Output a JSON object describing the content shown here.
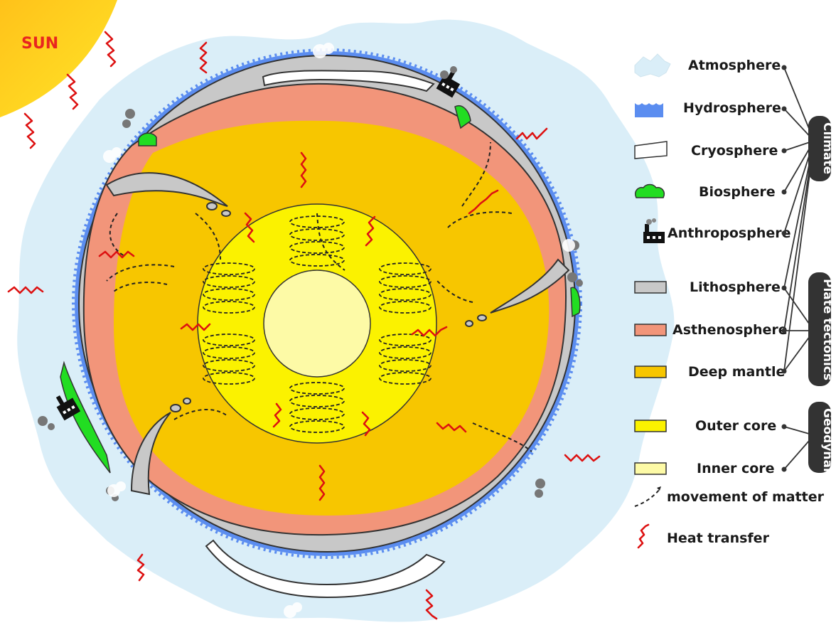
{
  "sun": {
    "label": "SUN",
    "color": "#ffd21f"
  },
  "colors": {
    "atmosphere": "#daeef8",
    "hydrosphere": "#5b8df0",
    "cryosphere": "#ffffff",
    "biosphere": "#22dd22",
    "anthroposphere": "#111111",
    "lithosphere": "#c8c8c8",
    "asthenosphere": "#f2957a",
    "deep_mantle": "#f7c600",
    "outer_core": "#fbf200",
    "inner_core": "#fdfaa6",
    "heat_transfer": "#dd1111",
    "movement": "#222222"
  },
  "legend": {
    "items": [
      {
        "label": "Atmosphere",
        "icon": "cloud-swatch-icon"
      },
      {
        "label": "Hydrosphere",
        "icon": "wave-swatch-icon"
      },
      {
        "label": "Cryosphere",
        "icon": "ice-swatch-icon"
      },
      {
        "label": "Biosphere",
        "icon": "bush-swatch-icon"
      },
      {
        "label": "Anthroposphere",
        "icon": "factory-swatch-icon"
      },
      {
        "label": "Lithosphere",
        "icon": "swatch"
      },
      {
        "label": "Asthenosphere",
        "icon": "swatch"
      },
      {
        "label": "Deep mantle",
        "icon": "swatch"
      },
      {
        "label": "Outer core",
        "icon": "swatch"
      },
      {
        "label": "Inner core",
        "icon": "swatch"
      }
    ],
    "groups": [
      {
        "label": "Climate"
      },
      {
        "label": "Plate tectonics"
      },
      {
        "label": "Geodynamo"
      }
    ],
    "movement_label": "movement of matter",
    "heat_label": "Heat transfer"
  }
}
